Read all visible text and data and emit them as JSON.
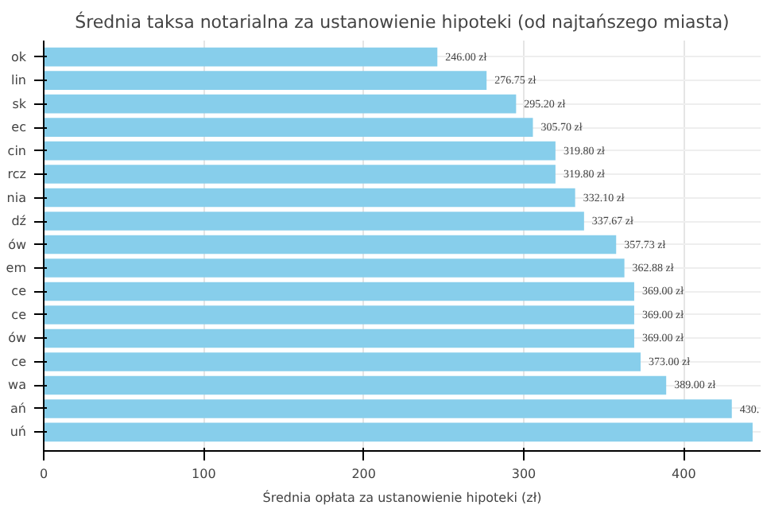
{
  "chart_data": {
    "type": "bar",
    "orientation": "horizontal",
    "title": "Średnia taksa notarialna za ustanowienie hipoteki (od najtańszego miasta)",
    "xlabel": "Średnia opłata za ustanowienie hipoteki (zł)",
    "categories": [
      "ok",
      "lin",
      "sk",
      "ec",
      "cin",
      "rcz",
      "nia",
      "dź",
      "ów",
      "em",
      "ce",
      "ce",
      "ów",
      "ce",
      "wa",
      "ań",
      "uń"
    ],
    "values": [
      246.0,
      276.75,
      295.2,
      305.7,
      319.8,
      319.8,
      332.1,
      337.67,
      357.73,
      362.88,
      369.0,
      369.0,
      369.0,
      373.0,
      389.0,
      430,
      443
    ],
    "value_labels": [
      "246.00 zł",
      "276.75 zł",
      "295.20 zł",
      "305.70 zł",
      "319.80 zł",
      "319.80 zł",
      "332.10 zł",
      "337.67 zł",
      "357.73 zł",
      "362.88 zł",
      "369.00 zł",
      "369.00 zł",
      "369.00 zł",
      "373.00 zł",
      "389.00 zł",
      "430.",
      null
    ],
    "color": "#87ceeb",
    "xlim": [
      0,
      448
    ],
    "xticks": [
      0,
      100,
      200,
      300,
      400
    ],
    "grid": true
  }
}
